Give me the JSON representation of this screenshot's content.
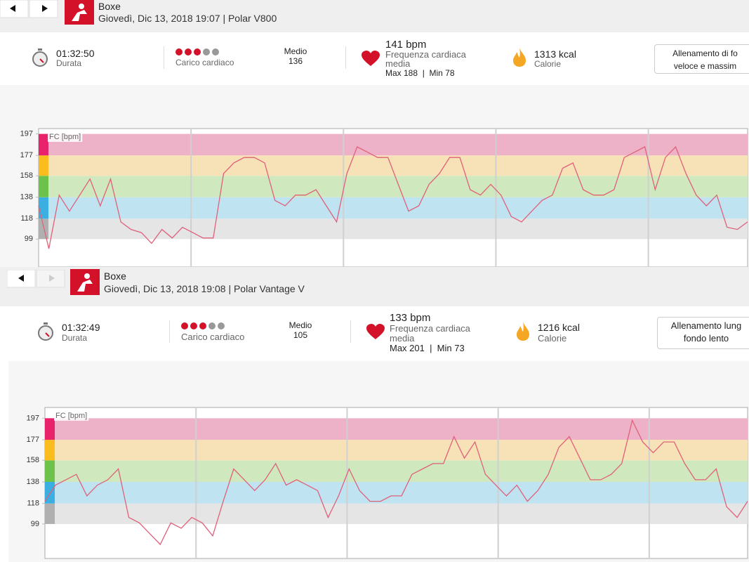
{
  "panels": [
    {
      "header": {
        "title": "Boxe",
        "subtitle": "Giovedì, Dic 13, 2018 19:07 | Polar V800"
      },
      "stats": {
        "duration": "01:32:50",
        "duration_label": "Durata",
        "load_label": "Carico cardiaco",
        "avg_label": "Medio",
        "avg": "136",
        "hr": "141 bpm",
        "hr_label_1": "Frequenza cardiaca",
        "hr_label_2": "media",
        "hr_range": "Max 188  |  Min 78",
        "calories": "1313 kcal",
        "calories_label": "Calorie",
        "button_1": "Allenamento di fo",
        "button_2": "veloce e massim"
      },
      "chart_data": {
        "type": "line",
        "ylabel": "FC [bpm]",
        "color": "#e0607a",
        "ylim": [
          73,
          202
        ],
        "yticks": [
          99,
          118,
          138,
          158,
          177,
          197
        ],
        "values": [
          130,
          90,
          140,
          125,
          140,
          155,
          130,
          155,
          115,
          108,
          105,
          95,
          108,
          100,
          110,
          105,
          100,
          100,
          160,
          170,
          175,
          175,
          170,
          135,
          130,
          140,
          140,
          145,
          130,
          115,
          160,
          185,
          180,
          175,
          175,
          150,
          125,
          130,
          150,
          160,
          175,
          175,
          145,
          140,
          150,
          140,
          120,
          115,
          125,
          135,
          140,
          165,
          170,
          145,
          140,
          140,
          145,
          175,
          180,
          185,
          145,
          175,
          185,
          160,
          140,
          130,
          140,
          110,
          108,
          115
        ]
      }
    },
    {
      "header": {
        "title": "Boxe",
        "subtitle": "Giovedì, Dic 13, 2018 19:08 | Polar Vantage V"
      },
      "stats": {
        "duration": "01:32:49",
        "duration_label": "Durata",
        "load_label": "Carico cardiaco",
        "avg_label": "Medio",
        "avg": "105",
        "hr": "133 bpm",
        "hr_label_1": "Frequenza cardiaca",
        "hr_label_2": "media",
        "hr_range": "Max 201  |  Min 73",
        "calories": "1216 kcal",
        "calories_label": "Calorie",
        "button_1": "Allenamento lung",
        "button_2": "fondo lento"
      },
      "chart_data": {
        "type": "line",
        "ylabel": "FC [bpm]",
        "color": "#e0607a",
        "ylim": [
          67,
          207
        ],
        "yticks": [
          99,
          118,
          138,
          158,
          177,
          197
        ],
        "values": [
          120,
          135,
          140,
          145,
          125,
          135,
          140,
          150,
          105,
          100,
          90,
          80,
          100,
          95,
          105,
          100,
          88,
          120,
          150,
          140,
          130,
          140,
          155,
          135,
          140,
          135,
          130,
          105,
          125,
          150,
          130,
          120,
          120,
          125,
          125,
          145,
          150,
          155,
          155,
          180,
          160,
          175,
          145,
          135,
          125,
          135,
          120,
          130,
          145,
          170,
          180,
          160,
          140,
          140,
          145,
          155,
          195,
          175,
          165,
          175,
          175,
          155,
          140,
          140,
          150,
          115,
          105,
          120
        ]
      }
    }
  ]
}
